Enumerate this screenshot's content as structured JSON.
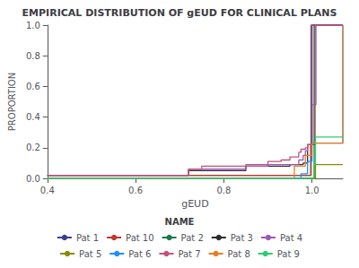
{
  "chart_data": {
    "type": "step",
    "title": "EMPIRICAL DISTRIBUTION OF gEUD FOR CLINICAL PLANS",
    "x_label": "gEUD",
    "y_label": "PROPORTION",
    "xlim": [
      0.4,
      1.07
    ],
    "ylim": [
      0.0,
      1.0
    ],
    "xticks": [
      0.4,
      0.6,
      0.8,
      {
        "value": 1.0,
        "label": "1.0"
      }
    ],
    "yticks": [
      {
        "value": 0.0,
        "label": "0.0"
      },
      0.2,
      0.4,
      0.6,
      0.8,
      {
        "value": 1.0,
        "label": "1.0"
      }
    ],
    "grid": false,
    "legend": "bottom",
    "legend_title": "NAME",
    "series": [
      {
        "name": "Pat 1",
        "color": "#3C3F8F",
        "x": [
          0.4,
          0.993,
          0.998,
          1.003,
          1.07
        ],
        "values": [
          0.02,
          0.02,
          1.0,
          1.0,
          1.0
        ]
      },
      {
        "name": "Pat 10",
        "color": "#C0392B",
        "x": [
          0.4,
          0.993,
          0.997,
          1.002,
          1.007,
          1.07
        ],
        "values": [
          0.02,
          0.02,
          0.22,
          0.22,
          1.0,
          1.0
        ]
      },
      {
        "name": "Pat 2",
        "color": "#1A7A4A",
        "x": [
          0.4,
          1.0,
          1.005,
          1.07
        ],
        "values": [
          0.0,
          0.0,
          1.0,
          1.0
        ]
      },
      {
        "name": "Pat 3",
        "color": "#2C2C2C",
        "x": [
          0.4,
          0.65,
          0.72,
          0.85,
          0.9,
          0.95,
          0.97,
          0.98,
          0.985,
          0.99,
          0.995,
          1.0,
          1.07
        ],
        "values": [
          0.02,
          0.02,
          0.05,
          0.08,
          0.08,
          0.09,
          0.09,
          0.1,
          0.1,
          0.22,
          0.22,
          1.0,
          1.0
        ]
      },
      {
        "name": "Pat 4",
        "color": "#9B59B6",
        "x": [
          0.4,
          0.65,
          0.72,
          0.85,
          0.9,
          0.94,
          0.97,
          0.98,
          0.985,
          0.99,
          0.995,
          1.0,
          1.004,
          1.009,
          1.07
        ],
        "values": [
          0.02,
          0.02,
          0.06,
          0.08,
          0.09,
          0.09,
          0.12,
          0.15,
          0.18,
          0.22,
          0.22,
          0.48,
          0.48,
          1.0,
          1.0
        ]
      },
      {
        "name": "Pat 5",
        "color": "#8B8B00",
        "x": [
          0.4,
          1.0,
          1.004,
          1.008,
          1.07
        ],
        "values": [
          0.0,
          0.0,
          0.0,
          0.09,
          0.09
        ]
      },
      {
        "name": "Pat 6",
        "color": "#1E90FF",
        "x": [
          0.4,
          0.97,
          0.975,
          0.98,
          0.99,
          0.995,
          1.0,
          1.004,
          1.07
        ],
        "values": [
          0.0,
          0.0,
          0.03,
          0.03,
          0.11,
          0.11,
          0.23,
          0.23,
          1.0
        ]
      },
      {
        "name": "Pat 7",
        "color": "#C2527A",
        "x": [
          0.4,
          0.65,
          0.72,
          0.75,
          0.85,
          0.9,
          0.93,
          0.95,
          0.97,
          0.975,
          0.98,
          0.985,
          0.99,
          0.995,
          1.0,
          1.07
        ],
        "values": [
          0.02,
          0.02,
          0.06,
          0.08,
          0.09,
          0.11,
          0.12,
          0.14,
          0.17,
          0.19,
          0.19,
          0.2,
          0.22,
          0.22,
          1.0,
          1.0
        ]
      },
      {
        "name": "Pat 8",
        "color": "#E67E22",
        "x": [
          0.4,
          0.93,
          0.96,
          0.975,
          0.985,
          0.995,
          1.0,
          1.004,
          1.07
        ],
        "values": [
          0.0,
          0.0,
          0.08,
          0.08,
          0.15,
          0.15,
          0.23,
          0.23,
          1.0
        ]
      },
      {
        "name": "Pat 9",
        "color": "#2ECC71",
        "x": [
          0.4,
          1.0,
          1.004,
          1.008,
          1.07
        ],
        "values": [
          0.0,
          0.0,
          0.09,
          0.27,
          0.27
        ]
      }
    ]
  }
}
